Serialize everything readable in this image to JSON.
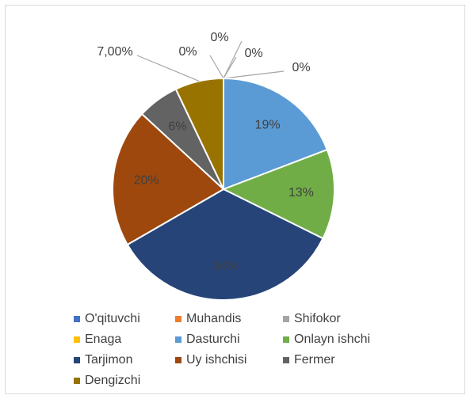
{
  "chart_data": {
    "type": "pie",
    "categories": [
      "O'qituvchi",
      "Muhandis",
      "Shifokor",
      "Enaga",
      "Dasturchi",
      "Onlayn ishchi",
      "Tarjimon",
      "Uy ishchisi",
      "Fermer",
      "Dengizchi"
    ],
    "values": [
      0,
      0,
      0,
      0,
      19,
      13,
      34,
      20,
      6,
      7
    ],
    "value_labels": [
      "0%",
      "0%",
      "0%",
      "0%",
      "19%",
      "13%",
      "34%",
      "20%",
      "6%",
      "7,00%"
    ],
    "colors": [
      "#4472c4",
      "#ed7d31",
      "#a5a5a5",
      "#ffc000",
      "#5b9bd5",
      "#70ad47",
      "#264478",
      "#9e480e",
      "#636363",
      "#997300"
    ],
    "legend": "bottom"
  }
}
